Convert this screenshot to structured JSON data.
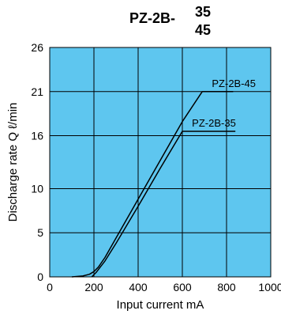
{
  "chart_data": {
    "type": "line",
    "title": {
      "prefix": "PZ-2B-",
      "variant_top": "35",
      "variant_bottom": "45"
    },
    "xlabel": "Input current mA",
    "ylabel": "Discharge rate Q  ℓ/min",
    "xlim": [
      0,
      1000
    ],
    "ylim": [
      0,
      26
    ],
    "xticks": [
      0,
      200,
      400,
      600,
      800,
      1000
    ],
    "yticks": [
      0,
      5,
      10,
      16,
      21,
      26
    ],
    "grid": true,
    "plot_background": "#5EC6EF",
    "line_color": "#000000",
    "series": [
      {
        "name": "PZ-2B-45",
        "label_line_end": 830,
        "x": [
          100,
          150,
          180,
          200,
          220,
          250,
          300,
          400,
          500,
          600,
          690
        ],
        "y": [
          0,
          0.1,
          0.3,
          0.6,
          1.1,
          2.2,
          4.4,
          8.8,
          13.2,
          17.6,
          21
        ]
      },
      {
        "name": "PZ-2B-35",
        "label_line_end": 840,
        "x": [
          190,
          210,
          250,
          300,
          400,
          500,
          600
        ],
        "y": [
          0,
          0.5,
          1.8,
          3.8,
          8.0,
          12.3,
          16.5
        ]
      }
    ]
  }
}
